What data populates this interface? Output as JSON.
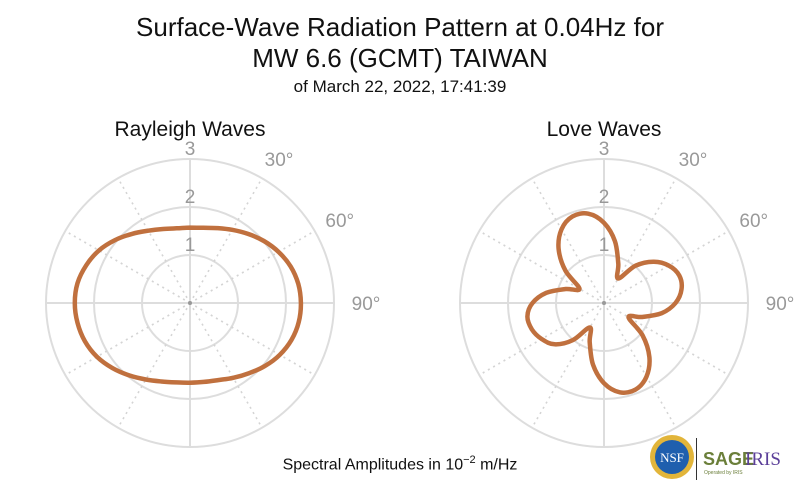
{
  "chart_data": [
    {
      "type": "polar-line",
      "title": "Rayleigh Waves",
      "angle_convention": "clockwise from north (0° at top)",
      "r_ticks": [
        "1",
        "2",
        "3"
      ],
      "r_range": [
        0,
        3
      ],
      "theta_ticks": [
        "30°",
        "60°",
        "90°"
      ],
      "theta_deg": [
        0,
        10,
        20,
        30,
        40,
        50,
        60,
        70,
        80,
        90,
        100,
        110,
        120,
        130,
        140,
        150,
        160,
        170,
        180,
        190,
        200,
        210,
        220,
        230,
        240,
        250,
        260,
        270,
        280,
        290,
        300,
        310,
        320,
        330,
        340,
        350
      ],
      "r": [
        1.57,
        1.59,
        1.66,
        1.76,
        1.88,
        2.01,
        2.13,
        2.23,
        2.29,
        2.31,
        2.3,
        2.25,
        2.16,
        2.04,
        1.91,
        1.8,
        1.71,
        1.67,
        1.66,
        1.68,
        1.74,
        1.84,
        1.97,
        2.11,
        2.24,
        2.33,
        2.38,
        2.4,
        2.38,
        2.3,
        2.19,
        2.04,
        1.88,
        1.74,
        1.64,
        1.58
      ],
      "color": "#c0703e"
    },
    {
      "type": "polar-line",
      "title": "Love Waves",
      "angle_convention": "clockwise from north (0° at top)",
      "r_ticks": [
        "1",
        "2",
        "3"
      ],
      "r_range": [
        0,
        3
      ],
      "theta_ticks": [
        "30°",
        "60°",
        "90°"
      ],
      "theta_deg": [
        0,
        10,
        20,
        30,
        40,
        50,
        60,
        70,
        80,
        90,
        100,
        110,
        120,
        130,
        140,
        150,
        160,
        170,
        180,
        190,
        200,
        210,
        220,
        230,
        240,
        250,
        260,
        270,
        280,
        290,
        300,
        310,
        320,
        330,
        340,
        350
      ],
      "r": [
        1.67,
        1.31,
        0.87,
        0.59,
        1.01,
        1.34,
        1.56,
        1.67,
        1.64,
        1.49,
        1.22,
        0.85,
        0.59,
        1.05,
        1.47,
        1.77,
        1.92,
        1.89,
        1.67,
        1.31,
        0.87,
        0.59,
        1.01,
        1.34,
        1.5,
        1.6,
        1.62,
        1.49,
        1.22,
        0.85,
        0.59,
        1.05,
        1.47,
        1.77,
        1.92,
        1.89
      ],
      "color": "#c0703e"
    }
  ],
  "header": {
    "title_line1": "Surface-Wave Radiation Pattern at 0.04Hz for",
    "title_line2": "MW 6.6 (GCMT) TAIWAN",
    "subtitle": "of March 22, 2022, 17:41:39"
  },
  "footer": {
    "label_prefix": "Spectral Amplitudes in 10",
    "label_exp": "−2",
    "label_suffix": " m/Hz"
  },
  "logo": {
    "nsf": "NSF",
    "sage": "SAGE",
    "iris": "IRIS",
    "operated_by": "Operated by IRIS"
  }
}
